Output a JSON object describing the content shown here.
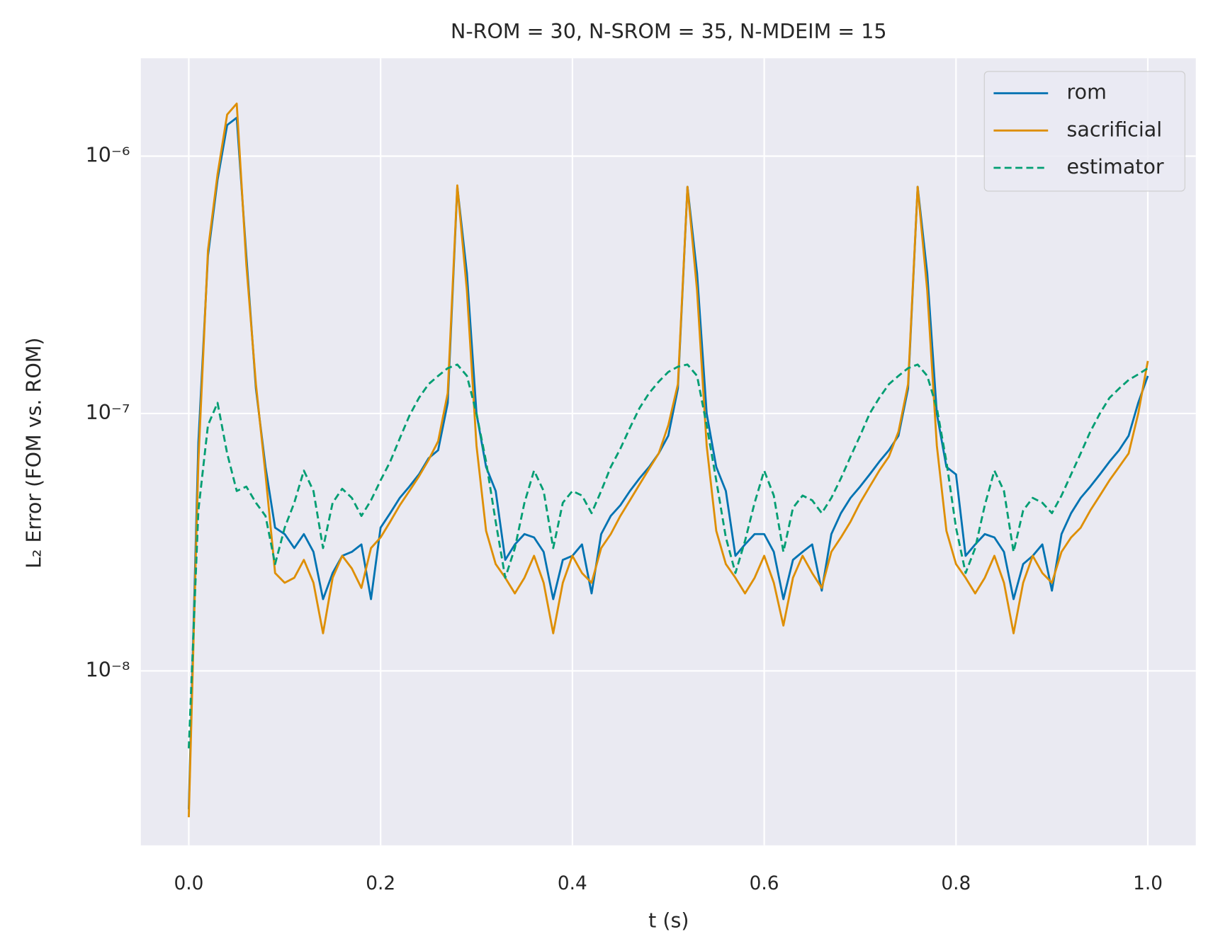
{
  "chart_data": {
    "type": "line",
    "title": "N-ROM = 30, N-SROM = 35, N-MDEIM = 15",
    "xlabel": "t (s)",
    "ylabel": "L₂ Error (FOM vs. ROM)",
    "ylog": true,
    "grid": true,
    "legend": "upper right",
    "xlim": [
      -0.05,
      1.05
    ],
    "xticks": [
      {
        "value": 0,
        "label": "0.0"
      },
      0.2,
      0.4,
      0.6,
      0.8,
      {
        "value": 1,
        "label": "1.0"
      }
    ],
    "ylim": [
      2.1e-09,
      2.4e-06
    ],
    "yticks": [
      {
        "value": 1e-08,
        "label": "10⁻⁸"
      },
      {
        "value": 1e-07,
        "label": "10⁻⁷"
      },
      {
        "value": 1e-06,
        "label": "10⁻⁶"
      }
    ],
    "x": [
      0,
      0.01,
      0.02,
      0.03,
      0.04,
      0.05,
      0.06,
      0.07,
      0.08,
      0.09,
      0.1,
      0.11,
      0.12,
      0.13,
      0.14,
      0.15,
      0.16,
      0.17,
      0.18,
      0.19,
      0.2,
      0.21,
      0.22,
      0.23,
      0.24,
      0.25,
      0.26,
      0.27,
      0.28,
      0.29,
      0.3,
      0.31,
      0.32,
      0.33,
      0.34,
      0.35,
      0.36,
      0.37,
      0.38,
      0.39,
      0.4,
      0.41,
      0.42,
      0.43,
      0.44,
      0.45,
      0.46,
      0.47,
      0.48,
      0.49,
      0.5,
      0.51,
      0.52,
      0.53,
      0.54,
      0.55,
      0.56,
      0.57,
      0.58,
      0.59,
      0.6,
      0.61,
      0.62,
      0.63,
      0.64,
      0.65,
      0.66,
      0.67,
      0.68,
      0.69,
      0.7,
      0.71,
      0.72,
      0.73,
      0.74,
      0.75,
      0.76,
      0.77,
      0.78,
      0.79,
      0.8,
      0.81,
      0.82,
      0.83,
      0.84,
      0.85,
      0.86,
      0.87,
      0.88,
      0.89,
      0.9,
      0.91,
      0.92,
      0.93,
      0.94,
      0.95,
      0.96,
      0.97,
      0.98,
      0.99,
      1
    ],
    "series": [
      {
        "name": "rom",
        "color": "#0173b2",
        "dash": "solid",
        "values": [
          2.9e-09,
          7.7e-08,
          4.1e-07,
          8.1e-07,
          1.32e-06,
          1.41e-06,
          4.1e-07,
          1.25e-07,
          6.2e-08,
          3.6e-08,
          3.4e-08,
          3e-08,
          3.4e-08,
          2.9e-08,
          1.9e-08,
          2.4e-08,
          2.8e-08,
          2.9e-08,
          3.1e-08,
          1.9e-08,
          3.6e-08,
          4.1e-08,
          4.7e-08,
          5.2e-08,
          5.8e-08,
          6.7e-08,
          7.2e-08,
          1.1e-07,
          7.6e-07,
          3.5e-07,
          1e-07,
          6.2e-08,
          5e-08,
          2.7e-08,
          3.1e-08,
          3.4e-08,
          3.3e-08,
          2.9e-08,
          1.9e-08,
          2.7e-08,
          2.8e-08,
          3.1e-08,
          2e-08,
          3.4e-08,
          4e-08,
          4.4e-08,
          5e-08,
          5.6e-08,
          6.2e-08,
          7e-08,
          8.2e-08,
          1.25e-07,
          7.6e-07,
          3.5e-07,
          1e-07,
          6.2e-08,
          5e-08,
          2.8e-08,
          3.1e-08,
          3.4e-08,
          3.4e-08,
          2.9e-08,
          1.9e-08,
          2.7e-08,
          2.9e-08,
          3.1e-08,
          2.05e-08,
          3.4e-08,
          4.1e-08,
          4.7e-08,
          5.2e-08,
          5.8e-08,
          6.5e-08,
          7.2e-08,
          8.2e-08,
          1.25e-07,
          7.6e-07,
          3.5e-07,
          1e-07,
          6.2e-08,
          5.8e-08,
          2.8e-08,
          3.1e-08,
          3.4e-08,
          3.3e-08,
          2.9e-08,
          1.9e-08,
          2.6e-08,
          2.8e-08,
          3.1e-08,
          2.05e-08,
          3.4e-08,
          4.1e-08,
          4.7e-08,
          5.2e-08,
          5.8e-08,
          6.5e-08,
          7.2e-08,
          8.2e-08,
          1.1e-07,
          1.4e-07
        ]
      },
      {
        "name": "sacrificial",
        "color": "#de8f05",
        "dash": "solid",
        "values": [
          2.7e-09,
          6.5e-08,
          4.3e-07,
          8.5e-07,
          1.45e-06,
          1.6e-06,
          3.8e-07,
          1.3e-07,
          5.8e-08,
          2.4e-08,
          2.2e-08,
          2.3e-08,
          2.7e-08,
          2.2e-08,
          1.4e-08,
          2.3e-08,
          2.8e-08,
          2.5e-08,
          2.1e-08,
          3e-08,
          3.3e-08,
          3.8e-08,
          4.4e-08,
          5e-08,
          5.7e-08,
          6.6e-08,
          7.8e-08,
          1.2e-07,
          7.7e-07,
          3e-07,
          7.5e-08,
          3.5e-08,
          2.6e-08,
          2.3e-08,
          2e-08,
          2.3e-08,
          2.8e-08,
          2.2e-08,
          1.4e-08,
          2.2e-08,
          2.8e-08,
          2.4e-08,
          2.2e-08,
          3e-08,
          3.4e-08,
          4e-08,
          4.6e-08,
          5.3e-08,
          6.1e-08,
          7e-08,
          9e-08,
          1.3e-07,
          7.6e-07,
          3e-07,
          7.5e-08,
          3.5e-08,
          2.6e-08,
          2.3e-08,
          2e-08,
          2.3e-08,
          2.8e-08,
          2.2e-08,
          1.5e-08,
          2.3e-08,
          2.8e-08,
          2.4e-08,
          2.1e-08,
          2.9e-08,
          3.3e-08,
          3.8e-08,
          4.5e-08,
          5.2e-08,
          6e-08,
          6.8e-08,
          8.5e-08,
          1.3e-07,
          7.6e-07,
          3e-07,
          7.5e-08,
          3.5e-08,
          2.6e-08,
          2.3e-08,
          2e-08,
          2.3e-08,
          2.8e-08,
          2.2e-08,
          1.4e-08,
          2.2e-08,
          2.8e-08,
          2.4e-08,
          2.2e-08,
          2.9e-08,
          3.3e-08,
          3.6e-08,
          4.2e-08,
          4.8e-08,
          5.5e-08,
          6.2e-08,
          7e-08,
          1e-07,
          1.6e-07
        ]
      },
      {
        "name": "estimator",
        "color": "#029e73",
        "dash": "dashed",
        "values": [
          5e-09,
          4.2e-08,
          9e-08,
          1.1e-07,
          7e-08,
          5e-08,
          5.2e-08,
          4.5e-08,
          4e-08,
          2.6e-08,
          3.6e-08,
          4.5e-08,
          6e-08,
          5e-08,
          3e-08,
          4.5e-08,
          5.1e-08,
          4.7e-08,
          4e-08,
          4.6e-08,
          5.5e-08,
          6.5e-08,
          8e-08,
          9.8e-08,
          1.15e-07,
          1.3e-07,
          1.4e-07,
          1.5e-07,
          1.55e-07,
          1.4e-07,
          1e-07,
          6.5e-08,
          3.8e-08,
          2.3e-08,
          3e-08,
          4.5e-08,
          6e-08,
          5e-08,
          3e-08,
          4.5e-08,
          5e-08,
          4.8e-08,
          4.1e-08,
          5e-08,
          6.2e-08,
          7.3e-08,
          8.8e-08,
          1.05e-07,
          1.2e-07,
          1.33e-07,
          1.45e-07,
          1.52e-07,
          1.55e-07,
          1.4e-07,
          9e-08,
          5.5e-08,
          3.3e-08,
          2.4e-08,
          3.2e-08,
          4.5e-08,
          6e-08,
          4.8e-08,
          2.9e-08,
          4.3e-08,
          4.8e-08,
          4.6e-08,
          4.1e-08,
          4.7e-08,
          5.6e-08,
          6.8e-08,
          8.2e-08,
          1e-07,
          1.15e-07,
          1.3e-07,
          1.4e-07,
          1.5e-07,
          1.55e-07,
          1.4e-07,
          1.05e-07,
          6.5e-08,
          3.6e-08,
          2.4e-08,
          3e-08,
          4.4e-08,
          6e-08,
          5e-08,
          2.9e-08,
          4.2e-08,
          4.7e-08,
          4.5e-08,
          4.1e-08,
          4.8e-08,
          5.8e-08,
          7e-08,
          8.5e-08,
          1e-07,
          1.15e-07,
          1.25e-07,
          1.35e-07,
          1.42e-07,
          1.5e-07
        ]
      }
    ]
  }
}
